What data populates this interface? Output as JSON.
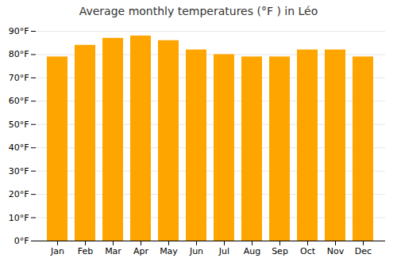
{
  "chart_data": {
    "type": "bar",
    "title": "Average monthly temperatures (°F ) in Léo",
    "categories": [
      "Jan",
      "Feb",
      "Mar",
      "Apr",
      "May",
      "Jun",
      "Jul",
      "Aug",
      "Sep",
      "Oct",
      "Nov",
      "Dec"
    ],
    "values": [
      79,
      84,
      87,
      88,
      86,
      82,
      80,
      79,
      79,
      82,
      82,
      79
    ],
    "color": "#FFA500",
    "ylim": [
      0,
      90
    ],
    "yticks": [
      {
        "value": 0,
        "label": "0°F"
      },
      {
        "value": 10,
        "label": "10°F"
      },
      {
        "value": 20,
        "label": "20°F"
      },
      {
        "value": 30,
        "label": "30°F"
      },
      {
        "value": 40,
        "label": "40°F"
      },
      {
        "value": 50,
        "label": "50°F"
      },
      {
        "value": 60,
        "label": "60°F"
      },
      {
        "value": 70,
        "label": "70°F"
      },
      {
        "value": 80,
        "label": "80°F"
      },
      {
        "value": 90,
        "label": "90°F"
      }
    ],
    "grid": true
  }
}
